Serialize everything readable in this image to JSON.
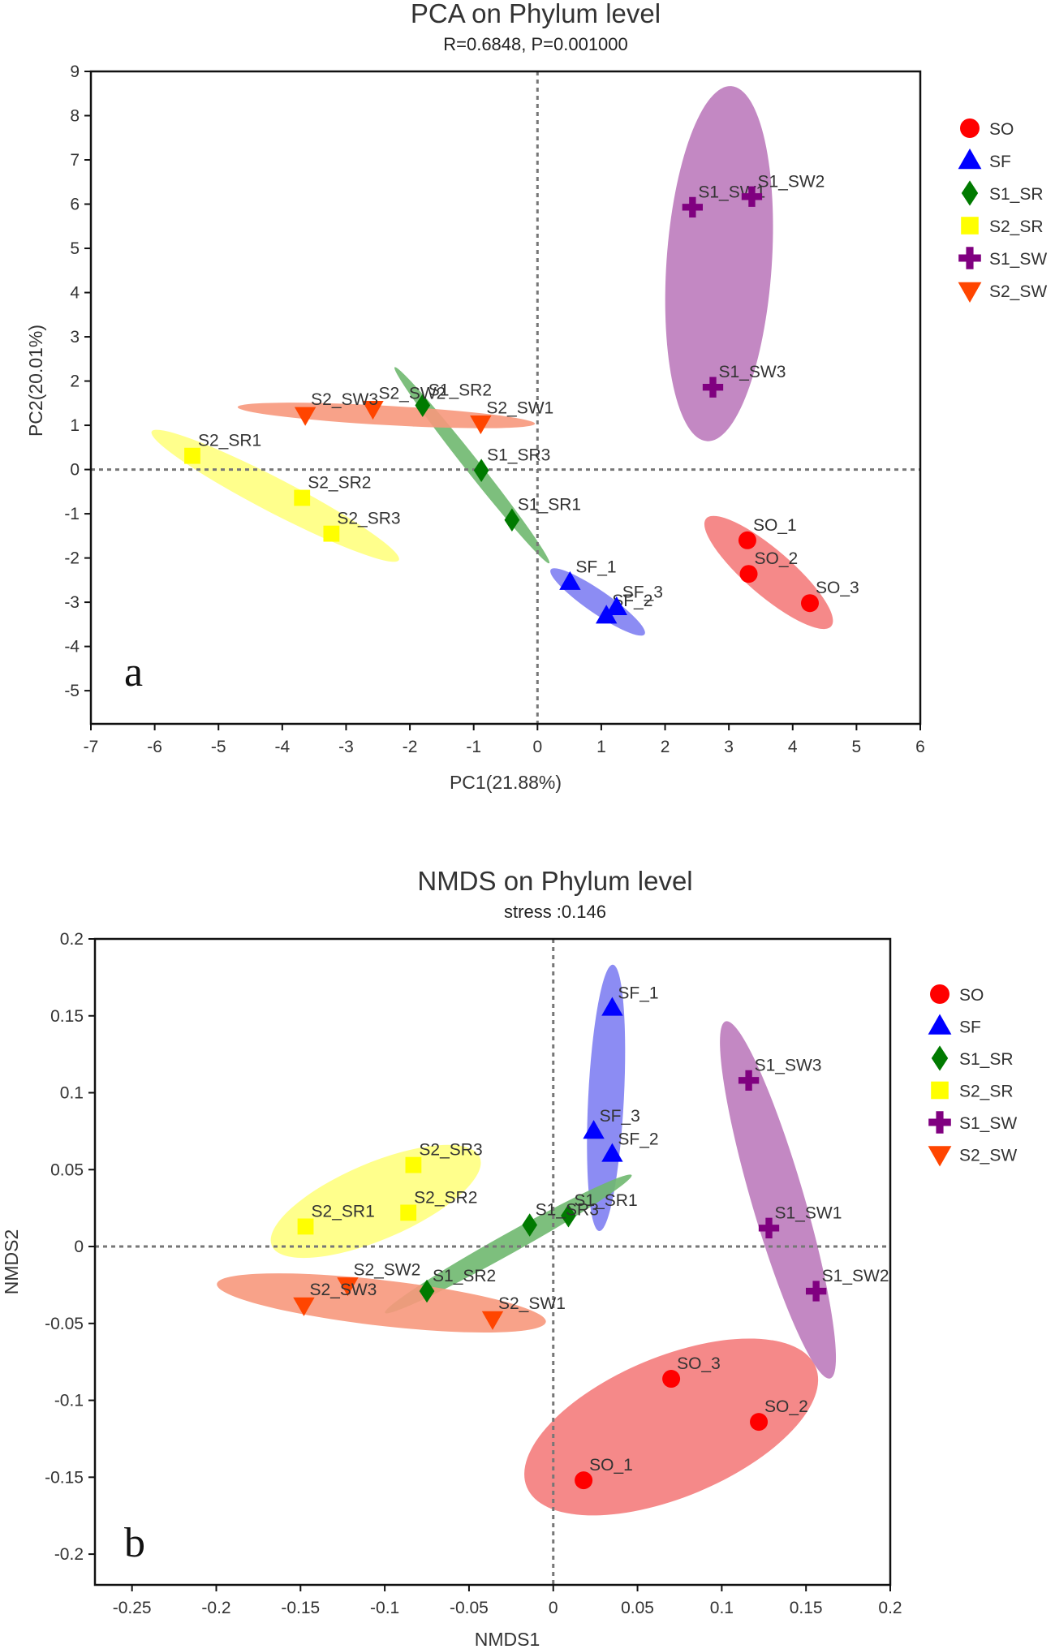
{
  "chart_data": [
    {
      "type": "scatter",
      "title": "PCA on Phylum level",
      "subtitle": "R=0.6848, P=0.001000",
      "xlabel": "PC1(21.88%)",
      "ylabel": "PC2(20.01%)",
      "panel_label": "a",
      "xlim": [
        -7,
        6
      ],
      "ylim": [
        -5.75,
        9
      ],
      "xticks": [
        -7,
        -6,
        -5,
        -4,
        -3,
        -2,
        -1,
        0,
        1,
        2,
        3,
        4,
        5,
        6
      ],
      "yticks": [
        -5,
        -4,
        -3,
        -2,
        -1,
        0,
        1,
        2,
        3,
        4,
        5,
        6,
        7,
        8,
        9
      ],
      "grid": false,
      "zero_lines": true,
      "legend_position": "right",
      "series": [
        {
          "name": "SO",
          "color": "#ff0000",
          "ellipse_color": "#f47c7c",
          "marker": "circle",
          "points": [
            {
              "label": "SO_1",
              "x": 3.29,
              "y": -1.6
            },
            {
              "label": "SO_2",
              "x": 3.31,
              "y": -2.36
            },
            {
              "label": "SO_3",
              "x": 4.27,
              "y": -3.02
            }
          ]
        },
        {
          "name": "SF",
          "color": "#0000ff",
          "ellipse_color": "#7f7ff2",
          "marker": "triangle-up",
          "points": [
            {
              "label": "SF_1",
              "x": 0.51,
              "y": -2.55
            },
            {
              "label": "SF_2",
              "x": 1.08,
              "y": -3.31
            },
            {
              "label": "SF_3",
              "x": 1.24,
              "y": -3.12
            }
          ]
        },
        {
          "name": "S1_SR",
          "color": "#007a00",
          "ellipse_color": "#6fb86f",
          "marker": "diamond",
          "points": [
            {
              "label": "S1_SR1",
              "x": -0.4,
              "y": -1.14
            },
            {
              "label": "S1_SR2",
              "x": -1.8,
              "y": 1.45
            },
            {
              "label": "S1_SR3",
              "x": -0.88,
              "y": -0.02
            }
          ]
        },
        {
          "name": "S2_SR",
          "color": "#ffff00",
          "ellipse_color": "#ffff80",
          "marker": "square",
          "points": [
            {
              "label": "S2_SR1",
              "x": -5.41,
              "y": 0.31
            },
            {
              "label": "S2_SR2",
              "x": -3.69,
              "y": -0.64
            },
            {
              "label": "S2_SR3",
              "x": -3.23,
              "y": -1.45
            }
          ]
        },
        {
          "name": "S1_SW",
          "color": "#800080",
          "ellipse_color": "#bd7bbd",
          "marker": "cross",
          "points": [
            {
              "label": "S1_SW1",
              "x": 2.43,
              "y": 5.93
            },
            {
              "label": "S1_SW2",
              "x": 3.36,
              "y": 6.17
            },
            {
              "label": "S1_SW3",
              "x": 2.75,
              "y": 1.86
            }
          ]
        },
        {
          "name": "S2_SW",
          "color": "#ff4500",
          "ellipse_color": "#f7987c",
          "marker": "triangle-down",
          "points": [
            {
              "label": "S2_SW1",
              "x": -0.89,
              "y": 1.05
            },
            {
              "label": "S2_SW2",
              "x": -2.58,
              "y": 1.38
            },
            {
              "label": "S2_SW3",
              "x": -3.64,
              "y": 1.24
            }
          ]
        }
      ]
    },
    {
      "type": "scatter",
      "title": "NMDS on Phylum level",
      "subtitle": "stress :0.146",
      "xlabel": "NMDS1",
      "ylabel": "NMDS2",
      "panel_label": "b",
      "xlim": [
        -0.272,
        0.2
      ],
      "ylim": [
        -0.22,
        0.2
      ],
      "xticks": [
        -0.25,
        -0.2,
        -0.15,
        -0.1,
        -0.05,
        0,
        0.05,
        0.1,
        0.15,
        0.2
      ],
      "yticks": [
        -0.2,
        -0.15,
        -0.1,
        -0.05,
        0,
        0.05,
        0.1,
        0.15,
        0.2
      ],
      "grid": false,
      "zero_lines": true,
      "legend_position": "right",
      "series": [
        {
          "name": "SO",
          "color": "#ff0000",
          "ellipse_color": "#f47c7c",
          "marker": "circle",
          "points": [
            {
              "label": "SO_1",
              "x": 0.018,
              "y": -0.152
            },
            {
              "label": "SO_2",
              "x": 0.122,
              "y": -0.114
            },
            {
              "label": "SO_3",
              "x": 0.07,
              "y": -0.086
            }
          ]
        },
        {
          "name": "SF",
          "color": "#0000ff",
          "ellipse_color": "#7f7ff2",
          "marker": "triangle-up",
          "points": [
            {
              "label": "SF_1",
              "x": 0.035,
              "y": 0.155
            },
            {
              "label": "SF_2",
              "x": 0.035,
              "y": 0.06
            },
            {
              "label": "SF_3",
              "x": 0.024,
              "y": 0.075
            }
          ]
        },
        {
          "name": "S1_SR",
          "color": "#007a00",
          "ellipse_color": "#6fb86f",
          "marker": "diamond",
          "points": [
            {
              "label": "S1_SR1",
              "x": 0.009,
              "y": 0.02
            },
            {
              "label": "S1_SR2",
              "x": -0.075,
              "y": -0.029
            },
            {
              "label": "S1_SR3",
              "x": -0.014,
              "y": 0.014
            }
          ]
        },
        {
          "name": "S2_SR",
          "color": "#ffff00",
          "ellipse_color": "#ffff80",
          "marker": "square",
          "points": [
            {
              "label": "S2_SR1",
              "x": -0.147,
              "y": 0.013
            },
            {
              "label": "S2_SR2",
              "x": -0.086,
              "y": 0.022
            },
            {
              "label": "S2_SR3",
              "x": -0.083,
              "y": 0.053
            }
          ]
        },
        {
          "name": "S1_SW",
          "color": "#800080",
          "ellipse_color": "#bd7bbd",
          "marker": "cross",
          "points": [
            {
              "label": "S1_SW1",
              "x": 0.128,
              "y": 0.012
            },
            {
              "label": "S1_SW2",
              "x": 0.156,
              "y": -0.029
            },
            {
              "label": "S1_SW3",
              "x": 0.116,
              "y": 0.108
            }
          ]
        },
        {
          "name": "S2_SW",
          "color": "#ff4500",
          "ellipse_color": "#f7987c",
          "marker": "triangle-down",
          "points": [
            {
              "label": "S2_SW1",
              "x": -0.036,
              "y": -0.047
            },
            {
              "label": "S2_SW2",
              "x": -0.122,
              "y": -0.025
            },
            {
              "label": "S2_SW3",
              "x": -0.148,
              "y": -0.038
            }
          ]
        }
      ]
    }
  ]
}
